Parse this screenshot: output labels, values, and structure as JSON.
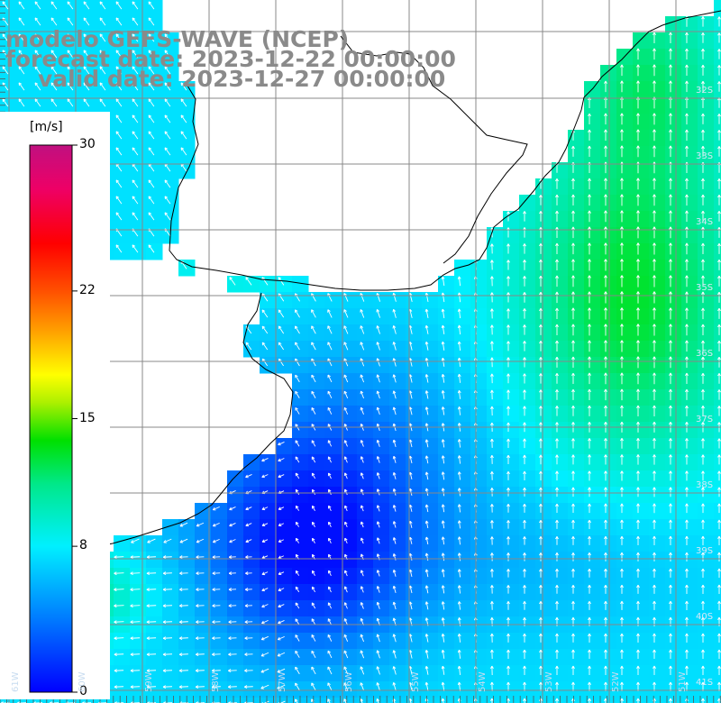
{
  "title": {
    "line1": "modelo GEFS-WAVE (NCEP)",
    "line2": "forecast date: 2023-12-22 00:00:00",
    "line3": "valid date: 2023-12-27 00:00:00"
  },
  "colorbar": {
    "unit": "[m/s]",
    "ticks": [
      {
        "value": 30,
        "label": "30"
      },
      {
        "value": 22,
        "label": "22"
      },
      {
        "value": 15,
        "label": "15"
      },
      {
        "value": 8,
        "label": "8"
      },
      {
        "value": 0,
        "label": "0"
      }
    ],
    "range": [
      0,
      30
    ]
  },
  "grid": {
    "lat_labels": [
      "32S",
      "33S",
      "34S",
      "35S",
      "36S",
      "37S",
      "38S",
      "39S",
      "40S",
      "41S"
    ],
    "lon_labels": [
      "61W",
      "60W",
      "59W",
      "58W",
      "57W",
      "56W",
      "55W",
      "54W",
      "53W",
      "52W",
      "51W"
    ]
  },
  "colors": {
    "land": "#ffffff",
    "coast": "#000000",
    "grid": "#888888",
    "arrows": "#ffffff",
    "title": "#8a8a8a"
  }
}
